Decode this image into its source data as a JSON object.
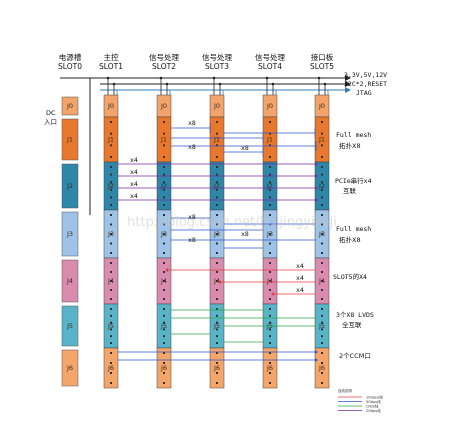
{
  "slots": [
    {
      "line1": "电源槽",
      "line2": "SLOT0"
    },
    {
      "line1": "主控",
      "line2": "SLOT1"
    },
    {
      "line1": "信号处理",
      "line2": "SLOT2"
    },
    {
      "line1": "信号处理",
      "line2": "SLOT3"
    },
    {
      "line1": "信号处理",
      "line2": "SLOT4"
    },
    {
      "line1": "接口板",
      "line2": "SLOT5"
    }
  ],
  "power_labels": {
    "dc_line1": "DC",
    "dc_line2": "入口",
    "rail": "3.3V,5V,12V",
    "i2c": "I2C*2,RESET",
    "jtag": "JTAG"
  },
  "connectors": [
    "J0",
    "J1",
    "J2",
    "J3",
    "J4",
    "J5",
    "J6"
  ],
  "annotations": {
    "full_mesh_1_a": "Full mesh",
    "full_mesh_1_b": "拓扑X8",
    "pcie_a": "PCIe串行x4",
    "pcie_b": "互联",
    "full_mesh_2_a": "Full mesh",
    "full_mesh_2_b": "拓扑X8",
    "slot5": "SLOT5的X4",
    "lvds_a": "3个X8 LVDS",
    "lvds_b": "全互联",
    "ccm": "2个CCM口"
  },
  "link_labels": {
    "x8": "x8",
    "x4": "x4"
  },
  "legend": [
    {
      "text": "10Gbps线",
      "color": "#e23b3b"
    },
    {
      "text": "5Gbps线",
      "color": "#3355cc"
    },
    {
      "text": "LVDS线",
      "color": "#2aa84a"
    },
    {
      "text": "2Gbps线",
      "color": "#7a2aa8"
    }
  ],
  "legend_title": "连线说明",
  "watermark": "http://blog.csdn.net/huijingyikeji",
  "colors": {
    "j0": "#f2a46b",
    "j1": "#e8782e",
    "j2": "#2e87a8",
    "j3": "#9fc3e6",
    "j4": "#d98cae",
    "j5": "#5ab4c8",
    "j6": "#f4a66a",
    "bus": "#222222",
    "bus_blue": "#2f7fb8"
  }
}
